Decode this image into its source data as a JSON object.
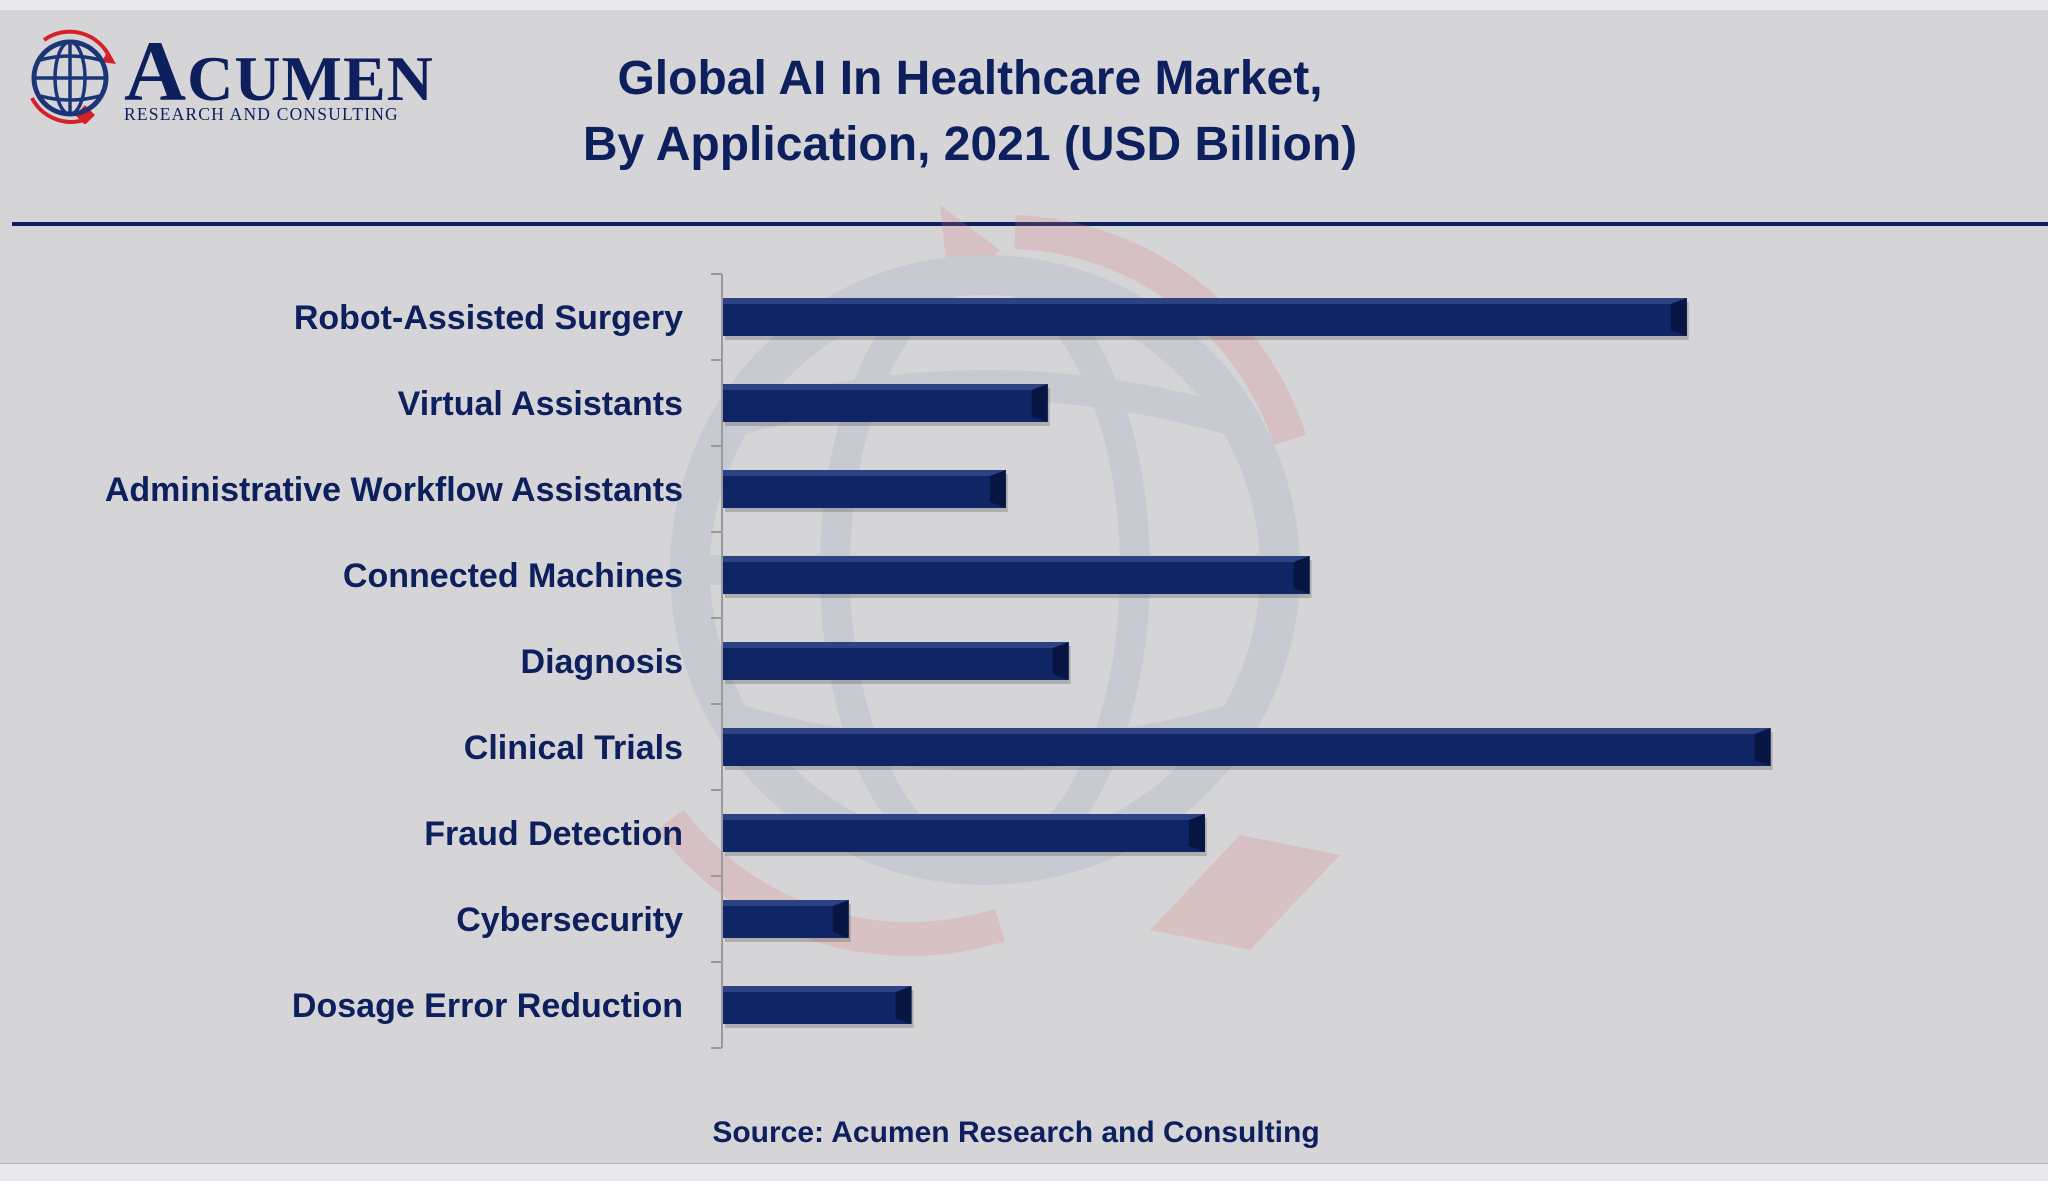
{
  "brand": {
    "name": "Acumen",
    "name_display_first": "A",
    "name_display_rest": "CUMEN",
    "subtitle": "RESEARCH AND CONSULTING",
    "navy": "#0d1f5c",
    "red": "#d42128",
    "bar_color": "#0f2565"
  },
  "source": "Source: Acumen Research and Consulting",
  "chart_data": {
    "type": "bar",
    "orientation": "horizontal",
    "title": "Global AI In Healthcare Market,",
    "subtitle": "By Application, 2021 (USD Billion)",
    "xlabel": "",
    "ylabel": "",
    "xlim": [
      0,
      1.05
    ],
    "grid": false,
    "legend": "none",
    "categories": [
      "Robot-Assisted Surgery",
      "Virtual Assistants",
      "Administrative Workflow Assistants",
      "Connected Machines",
      "Diagnosis",
      "Clinical Trials",
      "Fraud Detection",
      "Cybersecurity",
      "Dosage Error Reduction"
    ],
    "values": [
      0.92,
      0.31,
      0.27,
      0.56,
      0.33,
      1.0,
      0.46,
      0.12,
      0.18
    ]
  }
}
